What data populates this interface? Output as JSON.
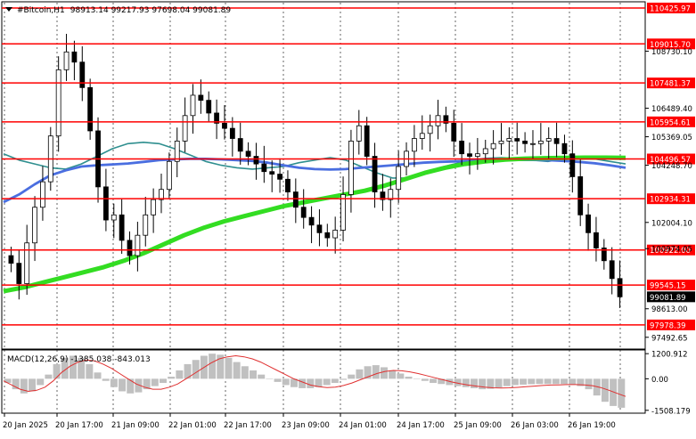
{
  "header": {
    "symbol": "#Bitcoin,H1",
    "ohlc": "98913.14 99217.93 97698.04 99081.89"
  },
  "colors": {
    "bull": "#000000",
    "bear": "#000000",
    "level_line": "#ff0000",
    "ma_fast": "#2f8f8f",
    "ma_mid": "#4a6ee0",
    "ma_slow": "#33dd22",
    "macd_hist": "#c0c0c0",
    "macd_signal": "#e03030",
    "current_price_bg": "#000000",
    "grid": "#000000"
  },
  "chart_data": [
    {
      "type": "candlestick",
      "title": "#Bitcoin,H1",
      "x_tick_labels": [
        "20 Jan 2025",
        "20 Jan 17:00",
        "21 Jan 09:00",
        "22 Jan 01:00",
        "22 Jan 17:00",
        "23 Jan 09:00",
        "24 Jan 01:00",
        "24 Jan 17:00",
        "25 Jan 09:00",
        "26 Jan 03:00",
        "26 Jan 19:00"
      ],
      "y_tick_labels": [
        "108730.10",
        "106489.40",
        "105369.05",
        "104248.70",
        "102004.10",
        "100974.05",
        "98613.00",
        "97492.65"
      ],
      "y_tick_values": [
        108730.1,
        106489.4,
        105369.05,
        104248.7,
        102004.1,
        100974.05,
        98613.0,
        97492.65
      ],
      "ylim": [
        97100,
        110600
      ],
      "levels": [
        {
          "label": "110425.97",
          "value": 110425.97
        },
        {
          "label": "109015.70",
          "value": 109015.7
        },
        {
          "label": "107481.37",
          "value": 107481.37
        },
        {
          "label": "105954.61",
          "value": 105954.61
        },
        {
          "label": "104496.57",
          "value": 104496.57
        },
        {
          "label": "102934.31",
          "value": 102934.31
        },
        {
          "label": "100922.00",
          "value": 100922.0
        },
        {
          "label": "99545.15",
          "value": 99545.15
        },
        {
          "label": "97978.39",
          "value": 97978.39
        }
      ],
      "current_price": {
        "label": "99081.89",
        "value": 99081.89
      },
      "close_series": [
        100400,
        99600,
        101200,
        102600,
        103600,
        105400,
        108000,
        108700,
        108300,
        107300,
        105600,
        103400,
        102100,
        102300,
        101300,
        100700,
        101500,
        102300,
        102900,
        103300,
        104400,
        105200,
        106200,
        107000,
        106800,
        106300,
        105900,
        105700,
        105300,
        104800,
        104600,
        104300,
        104000,
        103900,
        103700,
        103200,
        102600,
        102200,
        101900,
        101600,
        101400,
        101700,
        103100,
        105200,
        105800,
        104600,
        103200,
        102900,
        103300,
        104200,
        104800,
        105300,
        105500,
        105800,
        106200,
        105900,
        105200,
        104700,
        104600,
        104700,
        104900,
        105100,
        105200,
        105300,
        105200,
        105100,
        105100,
        105200,
        105300,
        105100,
        104700,
        103800,
        102300,
        101600,
        101000,
        100500,
        99800,
        99082
      ],
      "ma_fast": [
        104700,
        104450,
        104300,
        104150,
        104100,
        104300,
        104600,
        104900,
        105100,
        105150,
        105100,
        104900,
        104650,
        104400,
        104250,
        104150,
        104100,
        104150,
        104200,
        104350,
        104450,
        104550,
        104450,
        104200,
        103950,
        103750,
        103750,
        103950,
        104150,
        104300,
        104450,
        104520,
        104550,
        104520,
        104450,
        104400,
        104500,
        104550,
        104500,
        104400,
        104300
      ],
      "ma_mid": [
        102800,
        103100,
        103500,
        103850,
        104050,
        104200,
        104250,
        104280,
        104320,
        104380,
        104450,
        104480,
        104500,
        104500,
        104480,
        104450,
        104420,
        104350,
        104250,
        104150,
        104100,
        104080,
        104100,
        104150,
        104200,
        104250,
        104300,
        104350,
        104380,
        104400,
        104420,
        104440,
        104450,
        104460,
        104460,
        104450,
        104420,
        104380,
        104330,
        104250,
        104150
      ],
      "ma_slow": [
        99300,
        99450,
        99650,
        99850,
        100050,
        100250,
        100500,
        100800,
        101150,
        101500,
        101800,
        102050,
        102250,
        102450,
        102650,
        102800,
        102950,
        103100,
        103250,
        103450,
        103700,
        103950,
        104150,
        104300,
        104400,
        104470,
        104510,
        104530,
        104540,
        104550,
        104550,
        104540
      ]
    },
    {
      "type": "bar",
      "title": "MACD(12,26,9) -1385.038 -843.013",
      "y_tick_labels": [
        "1200.912",
        "0.00",
        "-1508.179"
      ],
      "y_tick_values": [
        1200.912,
        0,
        -1508.179
      ],
      "ylim": [
        -1560,
        1250
      ],
      "histogram": [
        -200,
        -500,
        -700,
        -600,
        -300,
        200,
        700,
        1000,
        1100,
        1000,
        700,
        300,
        -100,
        -400,
        -600,
        -700,
        -650,
        -500,
        -350,
        -200,
        100,
        400,
        700,
        900,
        1100,
        1200,
        1150,
        1000,
        800,
        600,
        400,
        200,
        0,
        -150,
        -300,
        -400,
        -450,
        -450,
        -400,
        -300,
        -200,
        -50,
        200,
        450,
        600,
        650,
        550,
        400,
        250,
        100,
        0,
        -100,
        -200,
        -250,
        -300,
        -350,
        -400,
        -450,
        -500,
        -480,
        -420,
        -350,
        -300,
        -280,
        -260,
        -250,
        -250,
        -250,
        -250,
        -280,
        -350,
        -500,
        -800,
        -1100,
        -1300,
        -1385
      ],
      "signal": [
        -100,
        -300,
        -500,
        -600,
        -550,
        -400,
        -100,
        300,
        600,
        800,
        900,
        850,
        700,
        500,
        250,
        0,
        -250,
        -400,
        -500,
        -500,
        -400,
        -250,
        0,
        250,
        500,
        750,
        950,
        1050,
        1100,
        1050,
        950,
        800,
        600,
        400,
        200,
        0,
        -150,
        -300,
        -380,
        -420,
        -400,
        -320,
        -200,
        -50,
        100,
        250,
        350,
        400,
        380,
        330,
        250,
        150,
        50,
        -50,
        -150,
        -230,
        -300,
        -350,
        -400,
        -430,
        -440,
        -430,
        -410,
        -380,
        -350,
        -320,
        -300,
        -290,
        -280,
        -280,
        -290,
        -330,
        -420,
        -550,
        -700,
        -843
      ]
    }
  ]
}
